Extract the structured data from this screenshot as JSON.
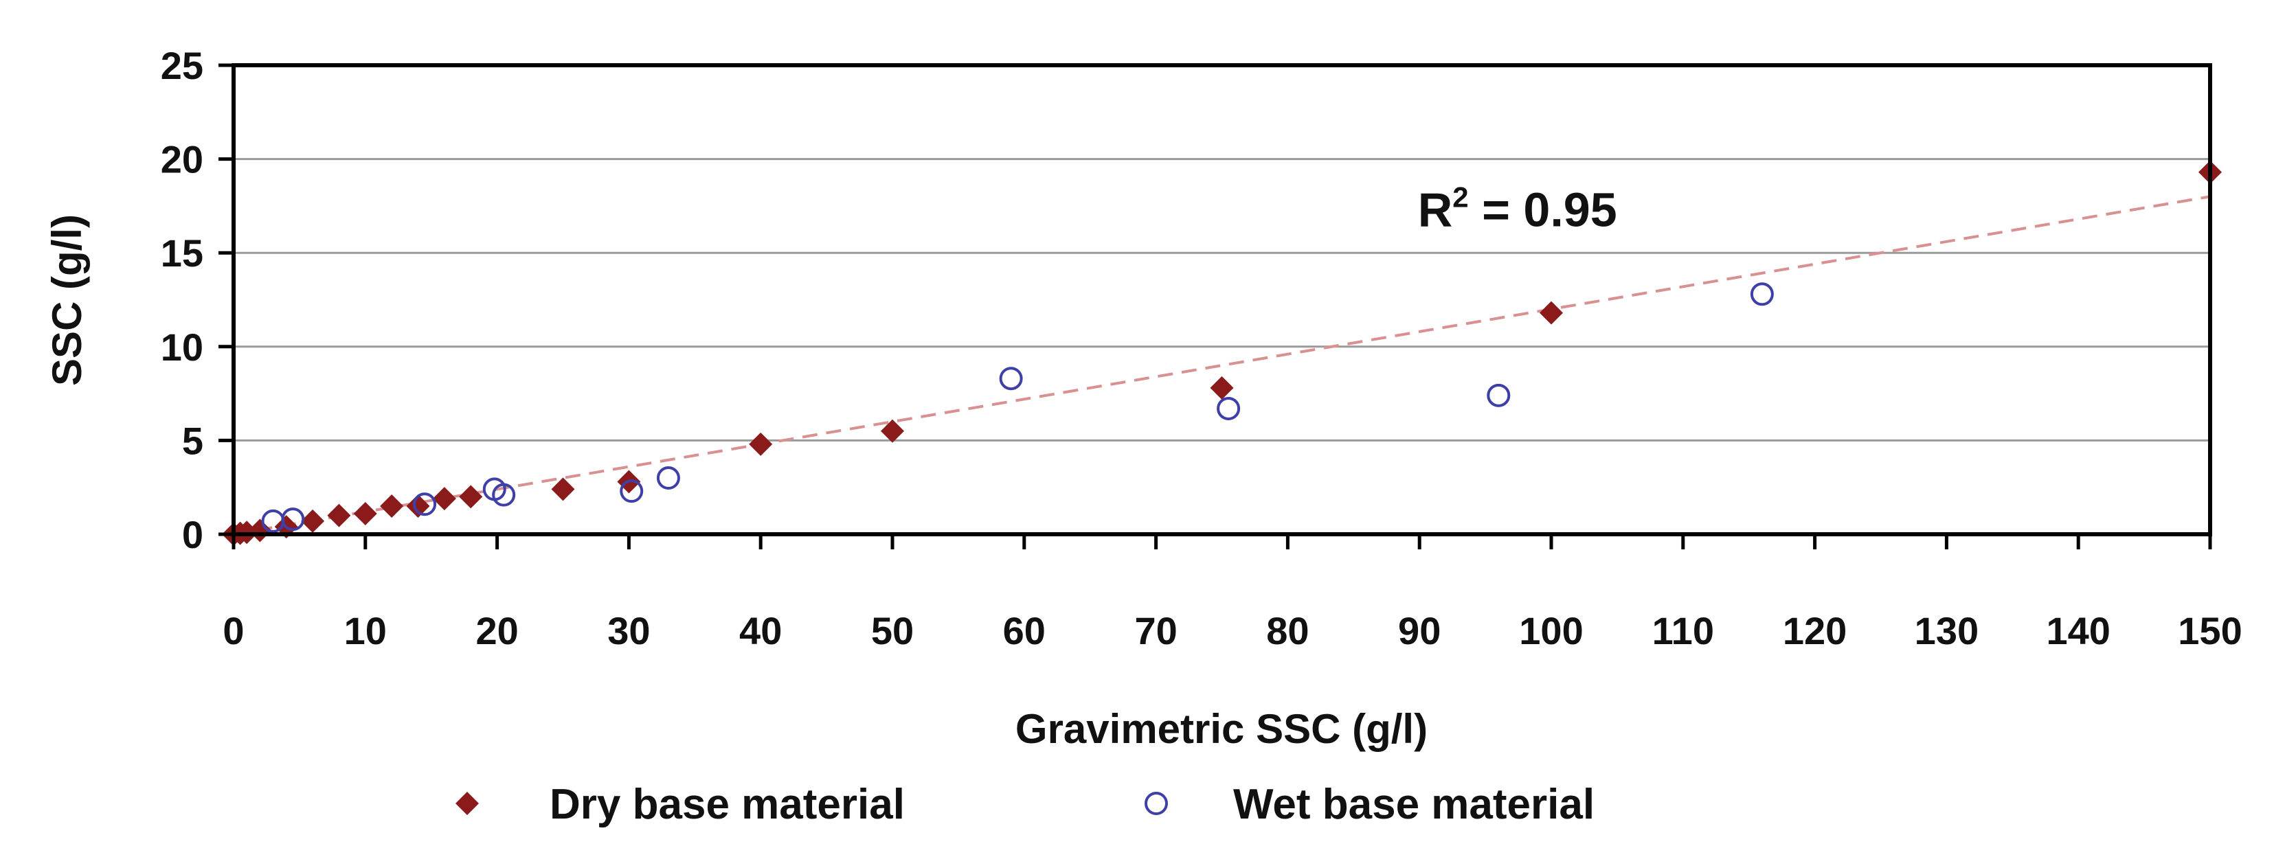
{
  "chart_data": {
    "type": "scatter",
    "title": "",
    "xlabel": "Gravimetric SSC (g/l)",
    "ylabel": "SSC (g/l)",
    "xlim": [
      0,
      150
    ],
    "ylim": [
      0,
      25
    ],
    "xticks": [
      0,
      10,
      20,
      30,
      40,
      50,
      60,
      70,
      80,
      90,
      100,
      110,
      120,
      130,
      140,
      150
    ],
    "yticks": [
      0,
      5,
      10,
      15,
      20,
      25
    ],
    "grid": "horizontal",
    "legend_position": "bottom",
    "annotation": {
      "base": "R",
      "superscript": "2",
      "text": " = 0.95",
      "x": 93,
      "y": 17.3
    },
    "trendline": {
      "type": "linear",
      "x": [
        0,
        150
      ],
      "y": [
        0,
        18
      ],
      "style": "dashed"
    },
    "series": [
      {
        "name": "Dry base material",
        "marker": "diamond",
        "color": "#8b1a1a",
        "points": [
          [
            0,
            0
          ],
          [
            0.5,
            0.05
          ],
          [
            1,
            0.1
          ],
          [
            2,
            0.2
          ],
          [
            4,
            0.4
          ],
          [
            6,
            0.7
          ],
          [
            8,
            1.0
          ],
          [
            10,
            1.1
          ],
          [
            12,
            1.5
          ],
          [
            14,
            1.5
          ],
          [
            16,
            1.9
          ],
          [
            18,
            2.0
          ],
          [
            25,
            2.4
          ],
          [
            30,
            2.8
          ],
          [
            40,
            4.8
          ],
          [
            50,
            5.5
          ],
          [
            75,
            7.8
          ],
          [
            100,
            11.8
          ],
          [
            150,
            19.3
          ]
        ]
      },
      {
        "name": "Wet base material",
        "marker": "circle",
        "color": "#3f3fa8",
        "points": [
          [
            3,
            0.7
          ],
          [
            4.5,
            0.8
          ],
          [
            14.5,
            1.6
          ],
          [
            19.8,
            2.4
          ],
          [
            20.5,
            2.1
          ],
          [
            30.2,
            2.3
          ],
          [
            33,
            3.0
          ],
          [
            59,
            8.3
          ],
          [
            75.5,
            6.7
          ],
          [
            96,
            7.4
          ],
          [
            116,
            12.8
          ]
        ]
      }
    ]
  }
}
